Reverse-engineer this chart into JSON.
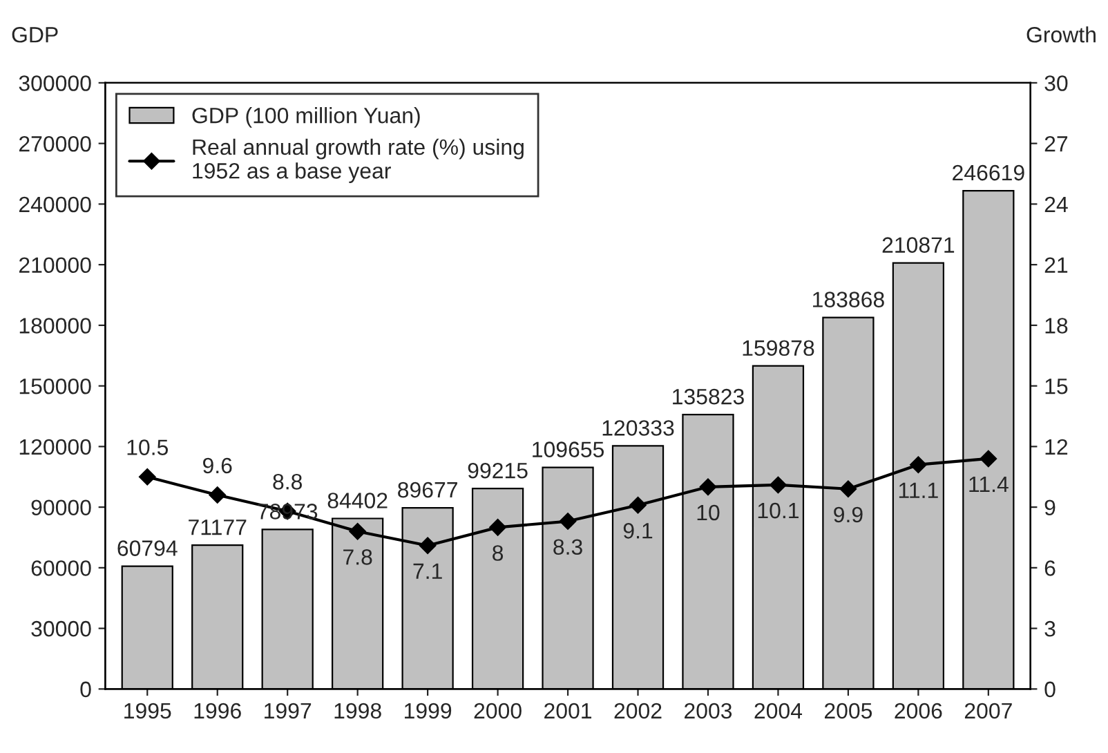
{
  "chart_data": {
    "type": "bar",
    "ylabel": "GDP",
    "y2label": "Growth",
    "categories": [
      "1995",
      "1996",
      "1997",
      "1998",
      "1999",
      "2000",
      "2001",
      "2002",
      "2003",
      "2004",
      "2005",
      "2006",
      "2007"
    ],
    "series": [
      {
        "name": "GDP (100 million Yuan)",
        "color": "#c0c0c0",
        "values": [
          60794,
          71177,
          78973,
          84402,
          89677,
          99215,
          109655,
          120333,
          135823,
          159878,
          183868,
          210871,
          246619
        ]
      },
      {
        "name": "Real annual growth rate (%) using\n1952 as a base year",
        "type": "line",
        "axis": "y2",
        "color": "#000000",
        "marker": "diamond",
        "values": [
          10.5,
          9.6,
          8.8,
          7.8,
          7.1,
          8,
          8.3,
          9.1,
          10,
          10.1,
          9.9,
          11.1,
          11.4
        ]
      }
    ],
    "ylim": [
      0,
      300000
    ],
    "yticks": [
      0,
      30000,
      60000,
      90000,
      120000,
      150000,
      180000,
      210000,
      240000,
      270000,
      300000
    ],
    "y2lim": [
      0,
      30
    ],
    "y2ticks": [
      0,
      3,
      6,
      9,
      12,
      15,
      18,
      21,
      24,
      27,
      30
    ],
    "data_labels": true,
    "legend": "top left",
    "grid": false
  }
}
